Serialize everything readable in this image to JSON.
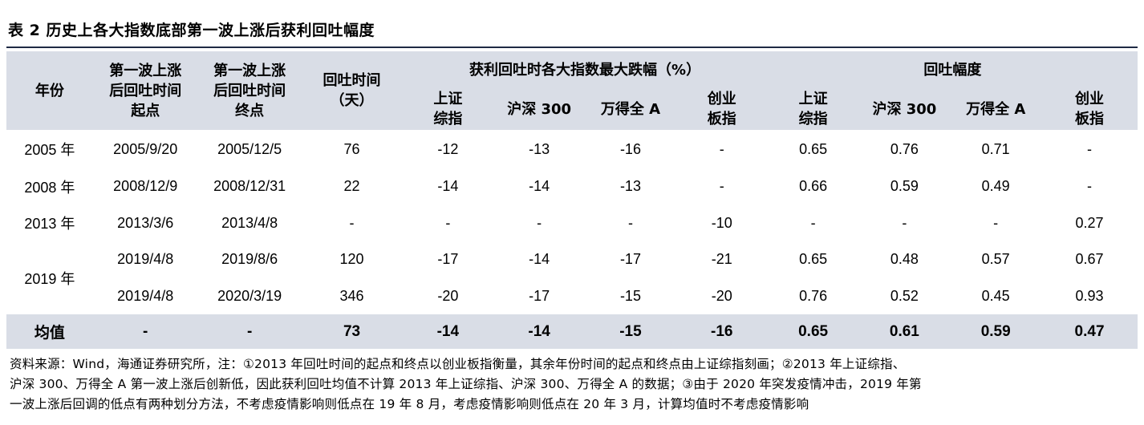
{
  "title": "表 2 历史上各大指数底部第一波上涨后获利回吐幅度",
  "header": {
    "year": "年份",
    "start": "第一波上涨后回吐时间起点",
    "end": "第一波上涨后回吐时间终点",
    "days": "回吐时间（天）",
    "group_drop": "获利回吐时各大指数最大跌幅（%）",
    "group_ratio": "回吐幅度",
    "sub": [
      "上证综指",
      "沪深 300",
      "万得全 A",
      "创业板指",
      "上证综指",
      "沪深 300",
      "万得全 A",
      "创业板指"
    ]
  },
  "rows": [
    {
      "year": "2005 年",
      "start": "2005/9/20",
      "end": "2005/12/5",
      "days": "76",
      "v": [
        "-12",
        "-13",
        "-16",
        "-",
        "0.65",
        "0.76",
        "0.71",
        "-"
      ]
    },
    {
      "year": "2008 年",
      "start": "2008/12/9",
      "end": "2008/12/31",
      "days": "22",
      "v": [
        "-14",
        "-14",
        "-13",
        "-",
        "0.66",
        "0.59",
        "0.49",
        "-"
      ]
    },
    {
      "year": "2013 年",
      "start": "2013/3/6",
      "end": "2013/4/8",
      "days": "-",
      "v": [
        "-",
        "-",
        "-",
        "-10",
        "-",
        "-",
        "-",
        "0.27"
      ]
    },
    {
      "year": "2019 年",
      "start": "2019/4/8",
      "end": "2019/8/6",
      "days": "120",
      "v": [
        "-17",
        "-14",
        "-17",
        "-21",
        "0.65",
        "0.48",
        "0.57",
        "0.67"
      ]
    },
    {
      "year": "",
      "start": "2019/4/8",
      "end": "2020/3/19",
      "days": "346",
      "v": [
        "-20",
        "-17",
        "-15",
        "-20",
        "0.76",
        "0.52",
        "0.45",
        "0.93"
      ]
    }
  ],
  "average": {
    "label": "均值",
    "start": "-",
    "end": "-",
    "days": "73",
    "v": [
      "-14",
      "-14",
      "-15",
      "-16",
      "0.65",
      "0.61",
      "0.59",
      "0.47"
    ]
  },
  "note": [
    "资料来源：Wind，海通证券研究所，注：①2013 年回吐时间的起点和终点以创业板指衡量，其余年份时间的起点和终点由上证综指刻画；②2013 年上证综指、",
    "沪深 300、万得全 A 第一波上涨后创新低，因此获利回吐均值不计算 2013 年上证综指、沪深 300、万得全 A 的数据；③由于 2020 年突发疫情冲击，2019 年第",
    "一波上涨后回调的低点有两种划分方法，不考虑疫情影响则低点在 19 年 8 月，考虑疫情影响则低点在 20 年 3 月，计算均值时不考虑疫情影响"
  ]
}
